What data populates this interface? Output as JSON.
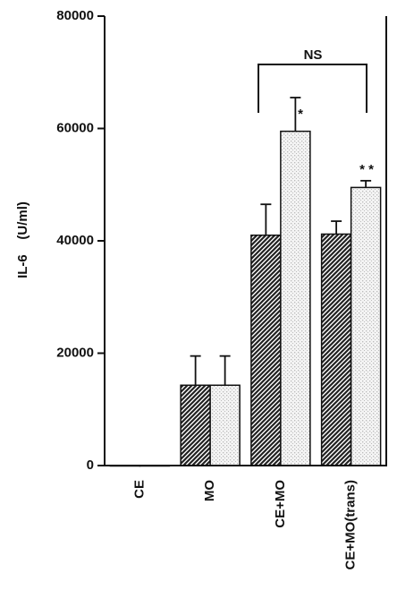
{
  "chart_data": {
    "type": "bar",
    "y_label": "IL-6    (U/ml)",
    "categories": [
      "CE",
      "MO",
      "CE+MO",
      "CE+MO(trans)"
    ],
    "series": [
      {
        "color": "#222222",
        "values": [
          0,
          14300,
          41000,
          41200
        ],
        "errors": [
          null,
          5200,
          5500,
          2300
        ]
      },
      {
        "color": "#bbbbbb",
        "values": [
          0,
          14300,
          59500,
          49500
        ],
        "errors": [
          null,
          5200,
          6000,
          1200
        ]
      }
    ],
    "ylim": [
      0,
      80000
    ],
    "yticks": [
      0,
      20000,
      40000,
      60000,
      80000
    ],
    "annotations": [
      "NS",
      "*",
      "* *"
    ]
  }
}
